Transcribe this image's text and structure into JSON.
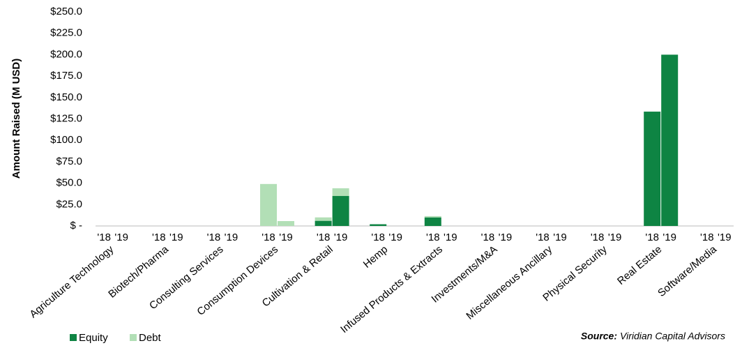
{
  "chart_data": {
    "type": "grouped-stacked-bar",
    "y_label": "Amount Raised (M USD)",
    "source_label": "Source:",
    "source": "Viridian Capital Advisors",
    "categories": [
      "Agriculture Technology",
      "Biotech/Pharma",
      "Consulting Services",
      "Consumption Devices",
      "Cultivation & Retail",
      "Hemp",
      "Infused Products & Extracts",
      "Investments/M&A",
      "Miscellaneous Ancillary",
      "Physical Security",
      "Real Estate",
      "Software/Media"
    ],
    "periods": [
      "'18",
      "'19"
    ],
    "series": [
      {
        "name": "Equity",
        "color": "#0e8443",
        "values": [
          [
            0,
            0
          ],
          [
            0,
            0
          ],
          [
            0,
            0
          ],
          [
            0,
            0
          ],
          [
            6,
            35
          ],
          [
            2,
            0
          ],
          [
            10,
            0
          ],
          [
            0,
            0
          ],
          [
            0,
            0
          ],
          [
            0,
            0
          ],
          [
            133.5,
            200
          ],
          [
            0,
            0
          ]
        ]
      },
      {
        "name": "Debt",
        "color": "#b2dfb6",
        "values": [
          [
            0,
            0
          ],
          [
            0,
            0
          ],
          [
            0,
            0
          ],
          [
            49,
            5.7
          ],
          [
            4,
            9
          ],
          [
            0,
            0
          ],
          [
            1.5,
            0
          ],
          [
            0,
            0
          ],
          [
            0,
            0
          ],
          [
            0,
            0
          ],
          [
            0,
            0
          ],
          [
            0,
            0
          ]
        ]
      }
    ],
    "ylim": [
      0,
      250
    ],
    "yticks": [
      {
        "value": 0,
        "label": "$ -"
      },
      {
        "value": 25,
        "label": "$25.0"
      },
      {
        "value": 50,
        "label": "$50.0"
      },
      {
        "value": 75,
        "label": "$75.0"
      },
      {
        "value": 100,
        "label": "$100.0"
      },
      {
        "value": 125,
        "label": "$125.0"
      },
      {
        "value": 150,
        "label": "$150.0"
      },
      {
        "value": 175,
        "label": "$175.0"
      },
      {
        "value": 200,
        "label": "$200.0"
      },
      {
        "value": 225,
        "label": "$225.0"
      },
      {
        "value": 250,
        "label": "$250.0"
      }
    ],
    "grid": false
  }
}
